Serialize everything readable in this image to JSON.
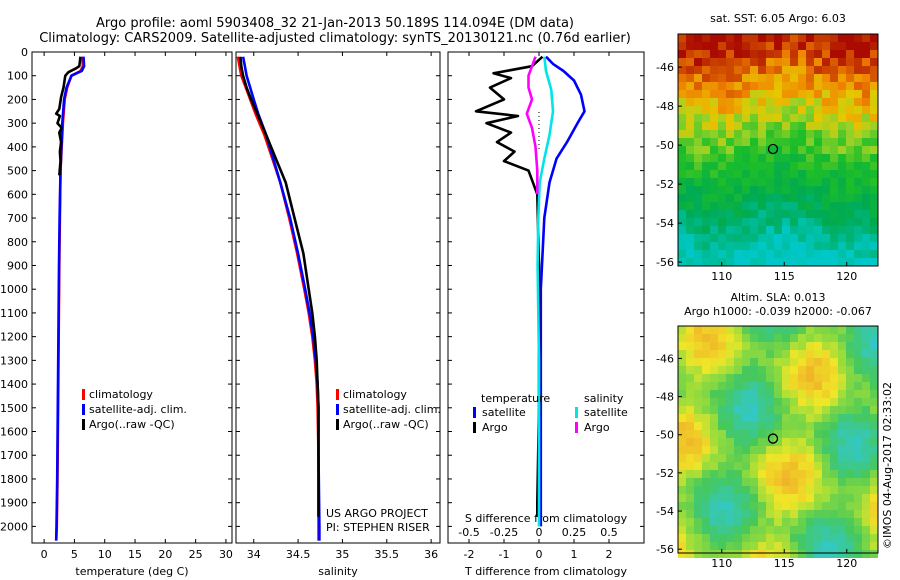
{
  "header": {
    "title_line1": "Argo profile: aoml 5903408_32 21-Jan-2013 50.189S 114.094E (DM data)",
    "title_line2": "Climatology: CARS2009. Satellite-adjusted climatology: synTS_20130121.nc (0.76d earlier)"
  },
  "colors": {
    "climatology": "#ff0000",
    "satellite": "#0000ff",
    "argo": "#000000",
    "sal_satellite": "#00e5e5",
    "sal_argo": "#ff00ff"
  },
  "depth_ticks": [
    0,
    100,
    200,
    300,
    400,
    500,
    600,
    700,
    800,
    900,
    1000,
    1100,
    1200,
    1300,
    1400,
    1500,
    1600,
    1700,
    1800,
    1900,
    2000
  ],
  "chart_data": [
    {
      "type": "line",
      "xlabel": "temperature (deg C)",
      "xlim": [
        -2,
        31
      ],
      "xticks": [
        "0",
        "5",
        "10",
        "15",
        "20",
        "25",
        "30"
      ],
      "ylim": [
        0,
        2070
      ],
      "legend": [
        "climatology",
        "satellite-adj. clim.",
        "Argo(..raw -QC)"
      ],
      "series": [
        {
          "name": "climatology",
          "color": "#ff0000",
          "points": [
            [
              6.3,
              20
            ],
            [
              6.4,
              60
            ],
            [
              6.0,
              80
            ],
            [
              4.5,
              100
            ],
            [
              3.8,
              150
            ],
            [
              3.4,
              200
            ],
            [
              3.1,
              300
            ],
            [
              2.9,
              400
            ],
            [
              2.7,
              500
            ],
            [
              2.6,
              700
            ],
            [
              2.5,
              900
            ],
            [
              2.4,
              1200
            ],
            [
              2.3,
              1500
            ],
            [
              2.2,
              1800
            ],
            [
              2.1,
              2000
            ],
            [
              2.0,
              2060
            ]
          ]
        },
        {
          "name": "satellite-adj. clim.",
          "color": "#0000ff",
          "points": [
            [
              6.5,
              20
            ],
            [
              6.6,
              60
            ],
            [
              6.2,
              80
            ],
            [
              4.5,
              100
            ],
            [
              3.7,
              150
            ],
            [
              3.3,
              200
            ],
            [
              3.0,
              300
            ],
            [
              2.85,
              400
            ],
            [
              2.7,
              500
            ],
            [
              2.55,
              700
            ],
            [
              2.45,
              900
            ],
            [
              2.35,
              1200
            ],
            [
              2.25,
              1500
            ],
            [
              2.15,
              1800
            ],
            [
              2.05,
              2000
            ],
            [
              2.0,
              2060
            ]
          ]
        },
        {
          "name": "Argo(..raw -QC)",
          "color": "#000000",
          "points": [
            [
              6.0,
              20
            ],
            [
              5.8,
              60
            ],
            [
              5.2,
              70
            ],
            [
              4.0,
              85
            ],
            [
              3.5,
              100
            ],
            [
              3.2,
              150
            ],
            [
              2.8,
              190
            ],
            [
              2.5,
              240
            ],
            [
              2.0,
              260
            ],
            [
              2.6,
              270
            ],
            [
              2.2,
              300
            ],
            [
              2.9,
              320
            ],
            [
              2.5,
              340
            ],
            [
              2.8,
              380
            ],
            [
              2.6,
              420
            ],
            [
              2.7,
              460
            ],
            [
              2.5,
              520
            ]
          ]
        }
      ]
    },
    {
      "type": "line",
      "xlabel": "salinity",
      "xlim": [
        33.8,
        36.1
      ],
      "xticks": [
        "34",
        "34.5",
        "35",
        "35.5",
        "36"
      ],
      "ylim": [
        0,
        2070
      ],
      "legend": [
        "climatology",
        "satellite-adj. clim.",
        "Argo(..raw -QC)"
      ],
      "annotation": [
        "US ARGO PROJECT",
        "PI: STEPHEN RISER"
      ],
      "series": [
        {
          "name": "climatology",
          "color": "#ff0000",
          "points": [
            [
              33.82,
              20
            ],
            [
              33.84,
              60
            ],
            [
              33.86,
              100
            ],
            [
              33.91,
              150
            ],
            [
              33.96,
              200
            ],
            [
              34.02,
              260
            ],
            [
              34.12,
              350
            ],
            [
              34.21,
              450
            ],
            [
              34.3,
              550
            ],
            [
              34.4,
              700
            ],
            [
              34.49,
              850
            ],
            [
              34.57,
              1000
            ],
            [
              34.62,
              1100
            ],
            [
              34.66,
              1200
            ],
            [
              34.69,
              1300
            ],
            [
              34.71,
              1400
            ],
            [
              34.72,
              1500
            ],
            [
              34.73,
              1700
            ],
            [
              34.73,
              2000
            ],
            [
              34.73,
              2060
            ]
          ]
        },
        {
          "name": "satellite-adj. clim.",
          "color": "#0000ff",
          "points": [
            [
              33.88,
              20
            ],
            [
              33.9,
              60
            ],
            [
              33.92,
              100
            ],
            [
              33.96,
              150
            ],
            [
              34.0,
              200
            ],
            [
              34.05,
              260
            ],
            [
              34.14,
              350
            ],
            [
              34.22,
              450
            ],
            [
              34.3,
              550
            ],
            [
              34.41,
              700
            ],
            [
              34.5,
              850
            ],
            [
              34.58,
              1000
            ],
            [
              34.63,
              1100
            ],
            [
              34.67,
              1200
            ],
            [
              34.7,
              1300
            ],
            [
              34.72,
              1400
            ],
            [
              34.73,
              1500
            ],
            [
              34.73,
              1700
            ],
            [
              34.74,
              2000
            ],
            [
              34.74,
              2060
            ]
          ]
        },
        {
          "name": "Argo(..raw -QC)",
          "color": "#000000",
          "points": [
            [
              33.85,
              20
            ],
            [
              33.86,
              60
            ],
            [
              33.88,
              100
            ],
            [
              33.92,
              150
            ],
            [
              33.97,
              200
            ],
            [
              34.04,
              260
            ],
            [
              34.14,
              350
            ],
            [
              34.25,
              450
            ],
            [
              34.36,
              550
            ],
            [
              34.46,
              700
            ],
            [
              34.56,
              850
            ],
            [
              34.62,
              1000
            ],
            [
              34.66,
              1100
            ],
            [
              34.69,
              1200
            ],
            [
              34.71,
              1300
            ],
            [
              34.72,
              1400
            ],
            [
              34.73,
              1500
            ],
            [
              34.73,
              1700
            ],
            [
              34.73,
              1960
            ]
          ]
        }
      ]
    },
    {
      "type": "line",
      "xlabel": "T difference from climatology",
      "xlim": [
        -2.6,
        3.0
      ],
      "xticks": [
        "-2",
        "-1",
        "0",
        "1",
        "2"
      ],
      "top_xlabel": "S difference from climatology",
      "top_xticks": [
        "-0.5",
        "-0.25",
        "0",
        "0.25",
        "0.5"
      ],
      "top_xlim": [
        -0.65,
        0.75
      ],
      "ylim": [
        0,
        2070
      ],
      "legend_titles": [
        "temperature",
        "salinity"
      ],
      "legend": [
        "satellite",
        "Argo",
        "satellite",
        "Argo"
      ],
      "series": [
        {
          "name": "temperature satellite",
          "color": "#0000ff",
          "points": [
            [
              0.2,
              20
            ],
            [
              0.4,
              50
            ],
            [
              0.7,
              80
            ],
            [
              1.0,
              120
            ],
            [
              1.2,
              180
            ],
            [
              1.3,
              250
            ],
            [
              1.1,
              300
            ],
            [
              0.8,
              380
            ],
            [
              0.5,
              450
            ],
            [
              0.3,
              550
            ],
            [
              0.15,
              700
            ],
            [
              0.05,
              1000
            ],
            [
              0.05,
              1500
            ],
            [
              0.05,
              2000
            ]
          ]
        },
        {
          "name": "temperature Argo",
          "color": "#000000",
          "points": [
            [
              0.1,
              20
            ],
            [
              -0.2,
              60
            ],
            [
              -1.3,
              90
            ],
            [
              -0.8,
              110
            ],
            [
              -1.4,
              150
            ],
            [
              -1.0,
              200
            ],
            [
              -1.8,
              250
            ],
            [
              -0.6,
              270
            ],
            [
              -1.5,
              300
            ],
            [
              -0.8,
              340
            ],
            [
              -1.2,
              380
            ],
            [
              -0.7,
              420
            ],
            [
              -1.0,
              460
            ],
            [
              -0.3,
              500
            ],
            [
              -0.05,
              600
            ],
            [
              0.0,
              900
            ],
            [
              0.0,
              1500
            ],
            [
              -0.05,
              1900
            ],
            [
              -0.05,
              1960
            ]
          ]
        },
        {
          "name": "salinity satellite",
          "color": "#00e5e5",
          "points": [
            [
              0.15,
              20
            ],
            [
              0.2,
              80
            ],
            [
              0.35,
              160
            ],
            [
              0.4,
              250
            ],
            [
              0.3,
              350
            ],
            [
              0.15,
              450
            ],
            [
              0.02,
              550
            ],
            [
              -0.02,
              700
            ],
            [
              -0.04,
              900
            ],
            [
              -0.02,
              1100
            ],
            [
              0.0,
              1300
            ],
            [
              0.0,
              1500
            ],
            [
              0.0,
              1700
            ],
            [
              0.0,
              2000
            ]
          ]
        },
        {
          "name": "salinity Argo",
          "color": "#ff00ff",
          "points": [
            [
              -0.1,
              20
            ],
            [
              -0.2,
              60
            ],
            [
              -0.3,
              100
            ],
            [
              -0.3,
              150
            ],
            [
              -0.2,
              200
            ],
            [
              -0.35,
              260
            ],
            [
              -0.2,
              320
            ],
            [
              -0.1,
              400
            ],
            [
              -0.05,
              500
            ],
            [
              -0.05,
              600
            ]
          ]
        }
      ]
    },
    {
      "type": "heatmap",
      "title": "sat. SST: 6.05  Argo: 6.03",
      "xticks": [
        "110",
        "115",
        "120"
      ],
      "yticks": [
        "-46",
        "-48",
        "-50",
        "-52",
        "-54",
        "-56"
      ],
      "xlim": [
        106.5,
        122.5
      ],
      "ylim": [
        -56.2,
        -44.3
      ],
      "marker": {
        "lon": 114.1,
        "lat": -50.2
      }
    },
    {
      "type": "heatmap",
      "title": "Altim. SLA: 0.013",
      "subtitle": "Argo h1000: -0.039 h2000: -0.067",
      "xticks": [
        "110",
        "115",
        "120"
      ],
      "yticks": [
        "-46",
        "-48",
        "-50",
        "-52",
        "-54",
        "-56"
      ],
      "xlim": [
        106.5,
        122.5
      ],
      "ylim": [
        -56.2,
        -44.3
      ],
      "marker": {
        "lon": 114.1,
        "lat": -50.2
      }
    }
  ],
  "footer": {
    "watermark": "©IMOS 04-Aug-2017 02:33:02"
  }
}
